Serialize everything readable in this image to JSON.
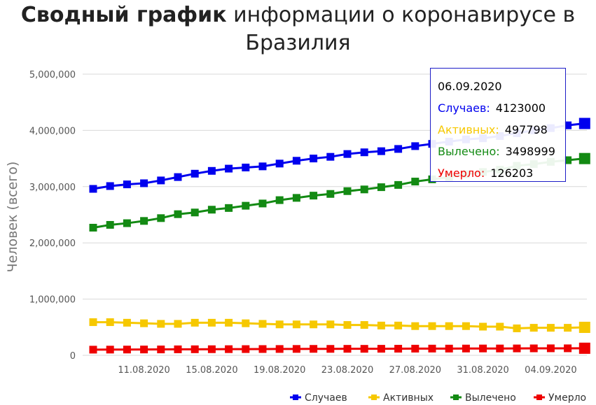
{
  "title": {
    "bold": "Сводный график",
    "rest": "информации о коронавирусе в Бразилия"
  },
  "colors": {
    "cases": "#0000ee",
    "active": "#f6c800",
    "recovered": "#138a13",
    "deaths": "#ee0000",
    "grid": "#d8d8d8",
    "axis_text": "#555555"
  },
  "tooltip": {
    "date": "06.09.2020",
    "rows": [
      {
        "label": "Случаев:",
        "value": "4123000",
        "series": "cases"
      },
      {
        "label": "Активных:",
        "value": "497798",
        "series": "active"
      },
      {
        "label": "Вылечено:",
        "value": "3498999",
        "series": "recovered"
      },
      {
        "label": "Умерло:",
        "value": "126203",
        "series": "deaths"
      }
    ]
  },
  "chart_data": {
    "type": "line",
    "ylabel": "Человек (всего)",
    "ylim": [
      0,
      5000000
    ],
    "yticks": [
      "0",
      "1,000,000",
      "2,000,000",
      "3,000,000",
      "4,000,000",
      "5,000,000"
    ],
    "x": [
      "08.08.2020",
      "09.08.2020",
      "10.08.2020",
      "11.08.2020",
      "12.08.2020",
      "13.08.2020",
      "14.08.2020",
      "15.08.2020",
      "16.08.2020",
      "17.08.2020",
      "18.08.2020",
      "19.08.2020",
      "20.08.2020",
      "21.08.2020",
      "22.08.2020",
      "23.08.2020",
      "24.08.2020",
      "25.08.2020",
      "26.08.2020",
      "27.08.2020",
      "28.08.2020",
      "29.08.2020",
      "30.08.2020",
      "31.08.2020",
      "01.09.2020",
      "02.09.2020",
      "03.09.2020",
      "04.09.2020",
      "05.09.2020",
      "06.09.2020"
    ],
    "xtick_labels": [
      "11.08.2020",
      "15.08.2020",
      "19.08.2020",
      "23.08.2020",
      "27.08.2020",
      "31.08.2020",
      "04.09.2020"
    ],
    "legend_position": "bottom-right",
    "highlighted_index": 29,
    "series": [
      {
        "name": "Случаев",
        "key": "cases",
        "values": [
          2960000,
          3010000,
          3040000,
          3060000,
          3110000,
          3170000,
          3230000,
          3280000,
          3320000,
          3340000,
          3360000,
          3410000,
          3460000,
          3500000,
          3530000,
          3580000,
          3610000,
          3630000,
          3670000,
          3720000,
          3760000,
          3800000,
          3840000,
          3860000,
          3900000,
          3950000,
          4000000,
          4040000,
          4090000,
          4123000
        ]
      },
      {
        "name": "Активных",
        "key": "active",
        "values": [
          590000,
          590000,
          580000,
          570000,
          560000,
          560000,
          580000,
          580000,
          580000,
          570000,
          560000,
          550000,
          550000,
          550000,
          550000,
          540000,
          540000,
          530000,
          530000,
          520000,
          520000,
          520000,
          520000,
          510000,
          510000,
          480000,
          490000,
          490000,
          490000,
          497798
        ]
      },
      {
        "name": "Вылечено",
        "key": "recovered",
        "values": [
          2270000,
          2320000,
          2350000,
          2390000,
          2440000,
          2510000,
          2540000,
          2590000,
          2620000,
          2660000,
          2700000,
          2760000,
          2800000,
          2840000,
          2870000,
          2920000,
          2950000,
          2990000,
          3030000,
          3090000,
          3130000,
          3170000,
          3220000,
          3260000,
          3300000,
          3370000,
          3400000,
          3440000,
          3470000,
          3498999
        ]
      },
      {
        "name": "Умерло",
        "key": "deaths",
        "values": [
          101000,
          102000,
          103000,
          104000,
          105000,
          107000,
          108000,
          109000,
          110000,
          111000,
          112000,
          113000,
          114000,
          115000,
          115000,
          116000,
          116000,
          117000,
          118000,
          119000,
          120000,
          120000,
          121000,
          122000,
          122000,
          123000,
          124000,
          125000,
          125000,
          126203
        ]
      }
    ]
  }
}
